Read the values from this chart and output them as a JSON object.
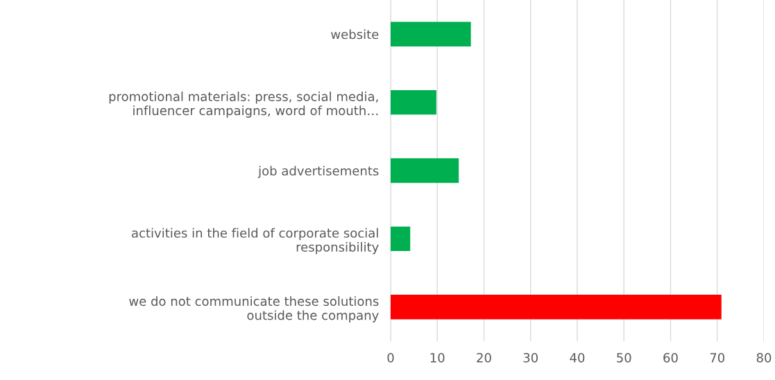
{
  "chart_data": {
    "type": "bar",
    "orientation": "horizontal",
    "categories": [
      "website",
      "promotional materials: press, social media,\ninfluencer campaigns, word of mouth…",
      "job advertisements",
      "activities in the field of corporate social\nresponsibility",
      "we do not communicate these solutions\noutside the company"
    ],
    "values": [
      17.2,
      9.8,
      14.6,
      4.2,
      70.9
    ],
    "colors": [
      "#00b050",
      "#00b050",
      "#00b050",
      "#00b050",
      "#ff0000"
    ],
    "xlim": [
      0,
      80
    ],
    "xticks": [
      0,
      10,
      20,
      30,
      40,
      50,
      60,
      70,
      80
    ],
    "grid": "x",
    "legend": false
  }
}
